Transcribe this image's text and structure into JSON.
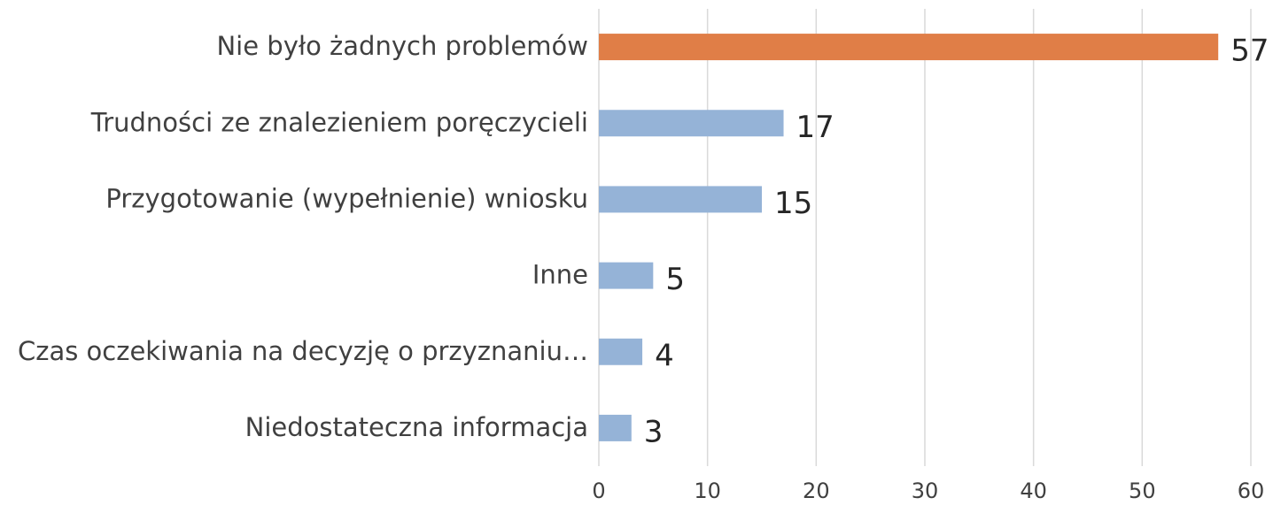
{
  "chart_data": {
    "type": "bar",
    "orientation": "horizontal",
    "categories": [
      "Nie było żadnych problemów",
      "Trudności ze znalezieniem poręczycieli",
      "Przygotowanie (wypełnienie) wniosku",
      "Inne",
      "Czas oczekiwania na decyzję o przyznaniu…",
      "Niedostateczna informacja"
    ],
    "values": [
      57,
      17,
      15,
      5,
      4,
      3
    ],
    "colors": [
      "#e07e47",
      "#95b3d7",
      "#95b3d7",
      "#95b3d7",
      "#95b3d7",
      "#95b3d7"
    ],
    "xlim": [
      0,
      60
    ],
    "xticks": [
      0,
      10,
      20,
      30,
      40,
      50,
      60
    ],
    "grid": true
  }
}
